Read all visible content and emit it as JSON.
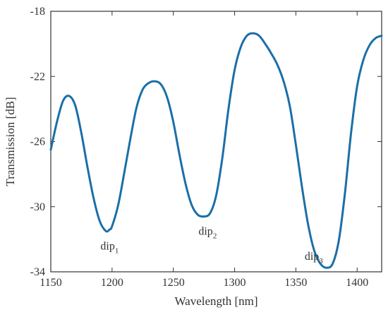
{
  "chart_data": {
    "type": "line",
    "title": "",
    "xlabel": "Wavelength [nm]",
    "ylabel": "Transmission [dB]",
    "xlim": [
      1150,
      1420
    ],
    "ylim": [
      -34,
      -18
    ],
    "xticks": [
      1150,
      1200,
      1250,
      1300,
      1350,
      1400
    ],
    "yticks": [
      -18,
      -22,
      -26,
      -30,
      -34
    ],
    "xtick_labels": [
      "1150",
      "1200",
      "1250",
      "1300",
      "1350",
      "1400"
    ],
    "ytick_labels": [
      "-18",
      "-22",
      "-26",
      "-30",
      "-34"
    ],
    "grid": false,
    "line_color": "#1a6fa8",
    "series": [
      {
        "x": [
          1150,
          1155,
          1160,
          1165,
          1170,
          1175,
          1180,
          1185,
          1190,
          1195,
          1198,
          1200,
          1205,
          1210,
          1215,
          1220,
          1225,
          1230,
          1235,
          1240,
          1245,
          1250,
          1255,
          1260,
          1265,
          1270,
          1275,
          1280,
          1285,
          1290,
          1295,
          1300,
          1305,
          1310,
          1315,
          1320,
          1325,
          1330,
          1335,
          1340,
          1345,
          1350,
          1355,
          1360,
          1365,
          1370,
          1375,
          1380,
          1385,
          1390,
          1395,
          1400,
          1405,
          1410,
          1415,
          1420
        ],
        "y": [
          -26.5,
          -24.8,
          -23.5,
          -23.2,
          -23.8,
          -25.5,
          -27.6,
          -29.5,
          -30.9,
          -31.5,
          -31.4,
          -31.2,
          -29.9,
          -27.9,
          -25.8,
          -23.9,
          -22.8,
          -22.4,
          -22.3,
          -22.5,
          -23.3,
          -24.8,
          -26.8,
          -28.6,
          -29.9,
          -30.5,
          -30.6,
          -30.4,
          -29.3,
          -27.0,
          -24.0,
          -21.6,
          -20.2,
          -19.5,
          -19.35,
          -19.5,
          -20.0,
          -20.6,
          -21.3,
          -22.3,
          -23.8,
          -26.2,
          -28.8,
          -31.1,
          -32.7,
          -33.5,
          -33.75,
          -33.5,
          -32.1,
          -29.2,
          -25.5,
          -22.6,
          -21.0,
          -20.1,
          -19.65,
          -19.5
        ]
      }
    ],
    "annotations": [
      {
        "label": "dip",
        "subscript": "1",
        "x": 1198,
        "y": -31.5
      },
      {
        "label": "dip",
        "subscript": "2",
        "x": 1278,
        "y": -30.6
      },
      {
        "label": "dip",
        "subscript": "3",
        "x": 1375,
        "y": -33.7
      }
    ]
  }
}
